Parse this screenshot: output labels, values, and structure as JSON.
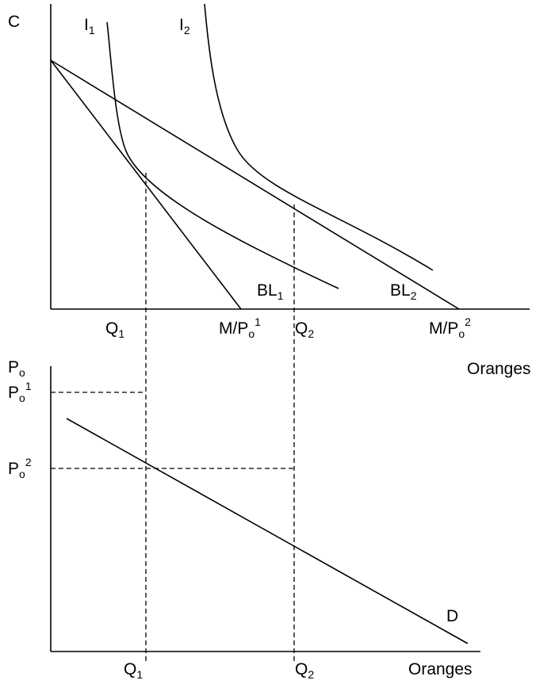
{
  "top_panel": {
    "y_axis_label": "C",
    "x_axis_label": "Oranges",
    "indifference_curves": [
      {
        "main": "I",
        "sub": "1"
      },
      {
        "main": "I",
        "sub": "2"
      }
    ],
    "budget_lines": [
      {
        "main": "BL",
        "sub": "1"
      },
      {
        "main": "BL",
        "sub": "2"
      }
    ],
    "x_ticks": [
      {
        "main": "Q",
        "sub": "1"
      },
      {
        "main": "M/P",
        "sub": "o",
        "sup": "1"
      },
      {
        "main": "Q",
        "sub": "2"
      },
      {
        "main": "M/P",
        "sub": "o",
        "sup": "2"
      }
    ]
  },
  "bottom_panel": {
    "y_axis_label": {
      "main": "P",
      "sub": "o"
    },
    "x_axis_label": "Oranges",
    "curve_label": "D",
    "y_ticks": [
      {
        "main": "P",
        "sub": "o",
        "sup": "1"
      },
      {
        "main": "P",
        "sub": "o",
        "sup": "2"
      }
    ],
    "x_ticks": [
      {
        "main": "Q",
        "sub": "1"
      },
      {
        "main": "Q",
        "sub": "2"
      }
    ]
  }
}
